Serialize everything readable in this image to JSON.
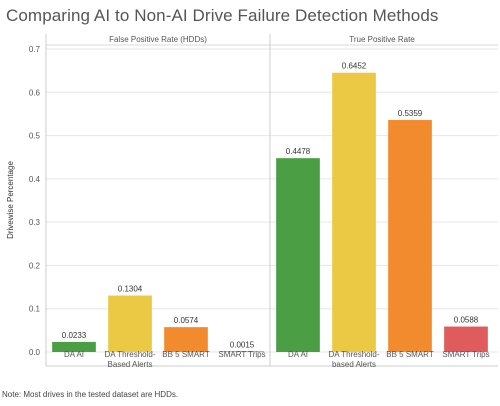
{
  "title": "Comparing AI to Non-AI Drive Failure Detection Methods",
  "note": "Note: Most drives in the tested dataset are HDDs.",
  "chart_data": {
    "type": "bar",
    "title": "Comparing AI to Non-AI Drive Failure Detection Methods",
    "ylabel": "Drivewise Percentage",
    "ylim": [
      0,
      0.72
    ],
    "yticks": [
      "0.0",
      "0.1",
      "0.2",
      "0.3",
      "0.4",
      "0.5",
      "0.6",
      "0.7"
    ],
    "grid": true,
    "panels": [
      {
        "name": "False Positive Rate (HDDs)",
        "categories": [
          "DA AI",
          "DA Threshold-\nBased Alerts",
          "BB 5 SMART",
          "SMART Trips"
        ],
        "values": [
          0.0233,
          0.1304,
          0.0574,
          0.0015
        ],
        "labels": [
          "0.0233",
          "0.1304",
          "0.0574",
          "0.0015"
        ],
        "colors": [
          "#4c9e45",
          "#ebc944",
          "#f28b2e",
          "#e05b5b"
        ]
      },
      {
        "name": "True Positive Rate",
        "categories": [
          "DA AI",
          "DA Threshold-\nbased Alerts",
          "BB 5 SMART",
          "SMART Trips"
        ],
        "values": [
          0.4478,
          0.6452,
          0.5359,
          0.0588
        ],
        "labels": [
          "0.4478",
          "0.6452",
          "0.5359",
          "0.0588"
        ],
        "colors": [
          "#4c9e45",
          "#ebc944",
          "#f28b2e",
          "#e05b5b"
        ]
      }
    ]
  }
}
